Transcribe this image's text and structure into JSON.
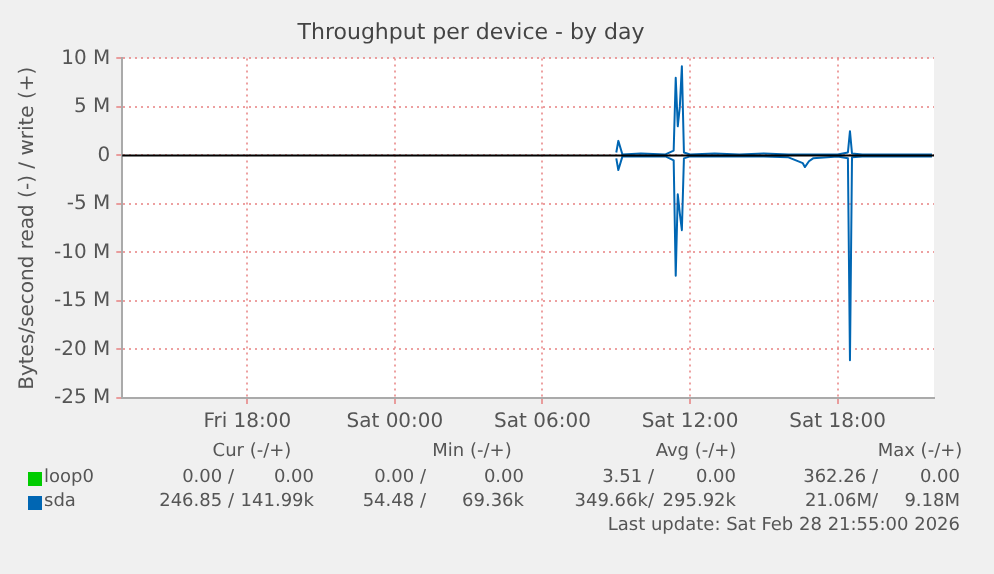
{
  "chart_data": {
    "type": "line",
    "title": "Throughput per device - by day",
    "ylabel": "Bytes/second read (-) / write (+)",
    "xlim": [
      "2026-02-27T12:55",
      "2026-02-28T21:55"
    ],
    "xticks": [
      {
        "value": "2026-02-27T18:00",
        "label": "Fri 18:00"
      },
      {
        "value": "2026-02-28T00:00",
        "label": "Sat 00:00"
      },
      {
        "value": "2026-02-28T06:00",
        "label": "Sat 06:00"
      },
      {
        "value": "2026-02-28T12:00",
        "label": "Sat 12:00"
      },
      {
        "value": "2026-02-28T18:00",
        "label": "Sat 18:00"
      }
    ],
    "ylim": [
      -25,
      10
    ],
    "yticks": [
      {
        "value": -25,
        "label": "-25 M"
      },
      {
        "value": -20,
        "label": "-20 M"
      },
      {
        "value": -15,
        "label": "-15 M"
      },
      {
        "value": -10,
        "label": "-10 M"
      },
      {
        "value": -5,
        "label": "-5 M"
      },
      0,
      {
        "value": 5,
        "label": "5 M"
      },
      {
        "value": 10,
        "label": "10 M"
      }
    ],
    "grid": true,
    "legend": "bottom left",
    "marker": "none",
    "line_style": "solid",
    "ref_lines": [
      {
        "axis": "y",
        "value": 0,
        "color": "#000000"
      }
    ],
    "series": [
      {
        "name": "loop0",
        "color": "#00cc00"
      },
      {
        "name": "sda",
        "color": "#0066b3",
        "x": [
          "2026-02-28T09:00",
          "2026-02-28T09:05",
          "2026-02-28T09:15",
          "2026-02-28T10:00",
          "2026-02-28T11:00",
          "2026-02-28T11:20",
          "2026-02-28T11:25",
          "2026-02-28T11:30",
          "2026-02-28T11:35",
          "2026-02-28T11:40",
          "2026-02-28T11:45",
          "2026-02-28T12:00",
          "2026-02-28T13:00",
          "2026-02-28T14:00",
          "2026-02-28T15:00",
          "2026-02-28T16:00",
          "2026-02-28T16:40",
          "2026-02-28T17:00",
          "2026-02-28T18:00",
          "2026-02-28T18:25",
          "2026-02-28T18:30",
          "2026-02-28T18:35",
          "2026-02-28T19:00",
          "2026-02-28T20:00",
          "2026-02-28T21:00",
          "2026-02-28T21:50"
        ],
        "values": [
          0.3,
          1.5,
          0.1,
          0.2,
          0.1,
          0.5,
          8,
          3,
          5,
          9.2,
          0.3,
          0.1,
          0.2,
          0.1,
          0.2,
          0.1,
          0.1,
          0.1,
          0.1,
          0.3,
          2.5,
          0.2,
          0.1,
          0.1,
          0.1,
          0.1
        ]
      },
      {
        "color": "#0066b3",
        "x": [
          "2026-02-28T09:00",
          "2026-02-28T09:05",
          "2026-02-28T09:15",
          "2026-02-28T10:00",
          "2026-02-28T11:00",
          "2026-02-28T11:20",
          "2026-02-28T11:25",
          "2026-02-28T11:30",
          "2026-02-28T11:35",
          "2026-02-28T11:40",
          "2026-02-28T11:45",
          "2026-02-28T12:00",
          "2026-02-28T13:00",
          "2026-02-28T14:00",
          "2026-02-28T15:00",
          "2026-02-28T16:00",
          "2026-02-28T16:35",
          "2026-02-28T16:40",
          "2026-02-28T16:50",
          "2026-02-28T17:00",
          "2026-02-28T18:00",
          "2026-02-28T18:25",
          "2026-02-28T18:30",
          "2026-02-28T18:35",
          "2026-02-28T19:00",
          "2026-02-28T20:00",
          "2026-02-28T21:00",
          "2026-02-28T21:50"
        ],
        "values": [
          -0.3,
          -1.5,
          -0.1,
          -0.1,
          -0.1,
          -0.5,
          -12.4,
          -4,
          -6,
          -7.7,
          -0.3,
          -0.1,
          -0.1,
          -0.1,
          -0.1,
          -0.2,
          -0.8,
          -1.2,
          -0.6,
          -0.3,
          -0.1,
          -0.3,
          -21.1,
          -0.2,
          -0.1,
          -0.1,
          -0.1,
          -0.1
        ]
      }
    ],
    "annotations": [
      "Cur (-/+)",
      "Min (-/+)",
      "Avg (-/+)",
      "Max (-/+)",
      "0.00 /",
      "0.00",
      "0.00 /",
      "0.00",
      "3.51 /",
      "0.00",
      "362.26 /",
      "0.00",
      "246.85 /",
      "141.99k",
      "54.48 /",
      "69.36k",
      "349.66k/",
      "295.92k",
      "21.06M/",
      "9.18M",
      "Last update: Sat Feb 28 21:55:00 2026"
    ]
  }
}
